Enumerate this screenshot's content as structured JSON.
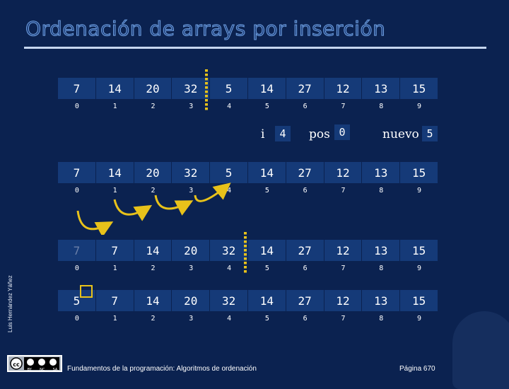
{
  "title": "Ordenación de arrays por inserción",
  "side_label": "Luis Hernández Yáñez",
  "indices": [
    "0",
    "1",
    "2",
    "3",
    "4",
    "5",
    "6",
    "7",
    "8",
    "9"
  ],
  "arrays": [
    {
      "values": [
        "7",
        "14",
        "20",
        "32",
        "5",
        "14",
        "27",
        "12",
        "13",
        "15"
      ]
    },
    {
      "values": [
        "7",
        "14",
        "20",
        "32",
        "5",
        "14",
        "27",
        "12",
        "13",
        "15"
      ]
    },
    {
      "values": [
        "7",
        "7",
        "14",
        "20",
        "32",
        "14",
        "27",
        "12",
        "13",
        "15"
      ]
    },
    {
      "values": [
        "5",
        "7",
        "14",
        "20",
        "32",
        "14",
        "27",
        "12",
        "13",
        "15"
      ]
    }
  ],
  "vars": {
    "i_label": "i",
    "i_value": "4",
    "pos_label": "pos",
    "pos_value": "0",
    "nuevo_label": "nuevo",
    "nuevo_value": "5"
  },
  "footer": {
    "course": "Fundamentos de la programación: Algoritmos de ordenación",
    "page": "Página 670"
  },
  "license": {
    "labels": [
      "BY",
      "NC",
      "SA"
    ]
  },
  "colors": {
    "background": "#0b2250",
    "cell": "#153a78",
    "accent": "#e8c21a"
  }
}
